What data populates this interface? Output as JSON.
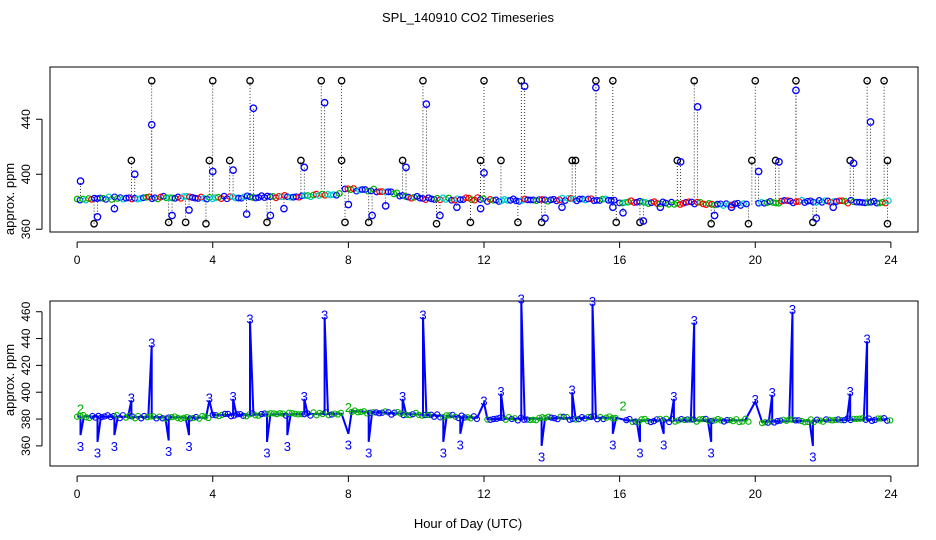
{
  "chart_data": [
    {
      "type": "scatter",
      "title": "SPL_140910  CO2 Timeseries",
      "xlabel": "",
      "ylabel": "approx. ppm",
      "xlim": [
        -0.8,
        24.8
      ],
      "ylim": [
        358,
        478
      ],
      "xticks": [
        0,
        4,
        8,
        12,
        16,
        20,
        24
      ],
      "yticks": [
        360,
        400,
        440
      ],
      "grid": false,
      "legend": "none",
      "baseline_segments": [
        {
          "x": [
            0.0,
            2.0,
            4.0,
            7.8
          ],
          "y": [
            382,
            383,
            383,
            385
          ]
        },
        {
          "x": [
            7.9,
            9.0,
            9.7,
            10.4,
            12.0
          ],
          "y": [
            389,
            388,
            384,
            382,
            382
          ]
        },
        {
          "x": [
            12.1,
            15.9
          ],
          "y": [
            381,
            382
          ]
        },
        {
          "x": [
            16.0,
            19.8
          ],
          "y": [
            380,
            378
          ]
        },
        {
          "x": [
            20.1,
            24.0
          ],
          "y": [
            380,
            380
          ]
        }
      ],
      "spikes": [
        {
          "x": 0.1,
          "y": 395
        },
        {
          "x": 0.5,
          "y": 364
        },
        {
          "x": 0.6,
          "y": 369
        },
        {
          "x": 1.1,
          "y": 375
        },
        {
          "x": 1.6,
          "y": 410
        },
        {
          "x": 1.7,
          "y": 400
        },
        {
          "x": 2.2,
          "y": 468
        },
        {
          "x": 2.2,
          "y": 436
        },
        {
          "x": 2.7,
          "y": 365
        },
        {
          "x": 2.8,
          "y": 370
        },
        {
          "x": 3.2,
          "y": 365
        },
        {
          "x": 3.3,
          "y": 374
        },
        {
          "x": 3.8,
          "y": 364
        },
        {
          "x": 3.9,
          "y": 410
        },
        {
          "x": 4.0,
          "y": 468
        },
        {
          "x": 4.0,
          "y": 402
        },
        {
          "x": 4.5,
          "y": 410
        },
        {
          "x": 4.6,
          "y": 403
        },
        {
          "x": 5.0,
          "y": 371
        },
        {
          "x": 5.1,
          "y": 468
        },
        {
          "x": 5.2,
          "y": 448
        },
        {
          "x": 5.6,
          "y": 365
        },
        {
          "x": 5.7,
          "y": 370
        },
        {
          "x": 6.1,
          "y": 375
        },
        {
          "x": 6.6,
          "y": 410
        },
        {
          "x": 6.7,
          "y": 405
        },
        {
          "x": 7.2,
          "y": 468
        },
        {
          "x": 7.3,
          "y": 452
        },
        {
          "x": 7.8,
          "y": 468
        },
        {
          "x": 7.8,
          "y": 410
        },
        {
          "x": 7.9,
          "y": 365
        },
        {
          "x": 8.0,
          "y": 378
        },
        {
          "x": 8.6,
          "y": 365
        },
        {
          "x": 8.7,
          "y": 370
        },
        {
          "x": 9.1,
          "y": 377
        },
        {
          "x": 9.6,
          "y": 410
        },
        {
          "x": 9.7,
          "y": 405
        },
        {
          "x": 10.2,
          "y": 468
        },
        {
          "x": 10.3,
          "y": 451
        },
        {
          "x": 10.6,
          "y": 364
        },
        {
          "x": 10.7,
          "y": 370
        },
        {
          "x": 11.2,
          "y": 376
        },
        {
          "x": 11.6,
          "y": 365
        },
        {
          "x": 11.9,
          "y": 410
        },
        {
          "x": 11.9,
          "y": 375
        },
        {
          "x": 12.0,
          "y": 468
        },
        {
          "x": 12.0,
          "y": 401
        },
        {
          "x": 12.5,
          "y": 410
        },
        {
          "x": 13.0,
          "y": 365
        },
        {
          "x": 13.1,
          "y": 468
        },
        {
          "x": 13.2,
          "y": 464
        },
        {
          "x": 13.7,
          "y": 365
        },
        {
          "x": 13.8,
          "y": 368
        },
        {
          "x": 14.3,
          "y": 376
        },
        {
          "x": 14.6,
          "y": 410
        },
        {
          "x": 14.7,
          "y": 410
        },
        {
          "x": 15.3,
          "y": 468
        },
        {
          "x": 15.3,
          "y": 463
        },
        {
          "x": 15.8,
          "y": 468
        },
        {
          "x": 15.8,
          "y": 376
        },
        {
          "x": 15.9,
          "y": 365
        },
        {
          "x": 16.1,
          "y": 372
        },
        {
          "x": 16.6,
          "y": 365
        },
        {
          "x": 16.7,
          "y": 366
        },
        {
          "x": 17.2,
          "y": 376
        },
        {
          "x": 17.7,
          "y": 410
        },
        {
          "x": 17.8,
          "y": 409
        },
        {
          "x": 18.2,
          "y": 468
        },
        {
          "x": 18.3,
          "y": 449
        },
        {
          "x": 18.7,
          "y": 364
        },
        {
          "x": 18.8,
          "y": 370
        },
        {
          "x": 19.3,
          "y": 376
        },
        {
          "x": 19.8,
          "y": 364
        },
        {
          "x": 19.9,
          "y": 410
        },
        {
          "x": 20.0,
          "y": 468
        },
        {
          "x": 20.1,
          "y": 402
        },
        {
          "x": 20.6,
          "y": 410
        },
        {
          "x": 20.7,
          "y": 409
        },
        {
          "x": 21.2,
          "y": 468
        },
        {
          "x": 21.2,
          "y": 461
        },
        {
          "x": 21.7,
          "y": 365
        },
        {
          "x": 21.8,
          "y": 368
        },
        {
          "x": 22.3,
          "y": 376
        },
        {
          "x": 22.8,
          "y": 410
        },
        {
          "x": 22.9,
          "y": 408
        },
        {
          "x": 23.3,
          "y": 468
        },
        {
          "x": 23.4,
          "y": 438
        },
        {
          "x": 23.8,
          "y": 468
        },
        {
          "x": 23.9,
          "y": 410
        },
        {
          "x": 23.9,
          "y": 364
        }
      ]
    },
    {
      "type": "line",
      "title": "",
      "xlabel": "Hour of Day (UTC)",
      "ylabel": "approx. ppm",
      "xlim": [
        -0.8,
        24.8
      ],
      "ylim": [
        345,
        468
      ],
      "xticks": [
        0,
        4,
        8,
        12,
        16,
        20,
        24
      ],
      "yticks": [
        360,
        380,
        400,
        420,
        440,
        460
      ],
      "series_name": "3",
      "labeled_points": [
        {
          "x": 0.1,
          "y": 360,
          "label": "3"
        },
        {
          "x": 0.6,
          "y": 355,
          "label": "3"
        },
        {
          "x": 1.1,
          "y": 360,
          "label": "3"
        },
        {
          "x": 1.6,
          "y": 396,
          "label": "3"
        },
        {
          "x": 2.2,
          "y": 437,
          "label": "3"
        },
        {
          "x": 2.7,
          "y": 356,
          "label": "3"
        },
        {
          "x": 3.3,
          "y": 360,
          "label": "3"
        },
        {
          "x": 3.9,
          "y": 396,
          "label": "3"
        },
        {
          "x": 4.6,
          "y": 397,
          "label": "3"
        },
        {
          "x": 5.1,
          "y": 455,
          "label": "3"
        },
        {
          "x": 5.6,
          "y": 355,
          "label": "3"
        },
        {
          "x": 6.2,
          "y": 360,
          "label": "3"
        },
        {
          "x": 6.7,
          "y": 397,
          "label": "3"
        },
        {
          "x": 7.3,
          "y": 458,
          "label": "3"
        },
        {
          "x": 8.0,
          "y": 361,
          "label": "3"
        },
        {
          "x": 8.6,
          "y": 355,
          "label": "3"
        },
        {
          "x": 9.6,
          "y": 397,
          "label": "3"
        },
        {
          "x": 10.2,
          "y": 458,
          "label": "3"
        },
        {
          "x": 10.8,
          "y": 355,
          "label": "3"
        },
        {
          "x": 11.3,
          "y": 361,
          "label": "3"
        },
        {
          "x": 12.0,
          "y": 394,
          "label": "3"
        },
        {
          "x": 12.5,
          "y": 401,
          "label": "3"
        },
        {
          "x": 13.1,
          "y": 470,
          "label": "3"
        },
        {
          "x": 13.7,
          "y": 352,
          "label": "3"
        },
        {
          "x": 14.6,
          "y": 402,
          "label": "3"
        },
        {
          "x": 15.2,
          "y": 468,
          "label": "3"
        },
        {
          "x": 15.8,
          "y": 361,
          "label": "3"
        },
        {
          "x": 16.6,
          "y": 355,
          "label": "3"
        },
        {
          "x": 17.3,
          "y": 361,
          "label": "3"
        },
        {
          "x": 17.6,
          "y": 397,
          "label": "3"
        },
        {
          "x": 18.2,
          "y": 454,
          "label": "3"
        },
        {
          "x": 18.7,
          "y": 355,
          "label": "3"
        },
        {
          "x": 20.0,
          "y": 395,
          "label": "3"
        },
        {
          "x": 20.5,
          "y": 400,
          "label": "3"
        },
        {
          "x": 21.1,
          "y": 462,
          "label": "3"
        },
        {
          "x": 21.7,
          "y": 352,
          "label": "3"
        },
        {
          "x": 22.8,
          "y": 401,
          "label": "3"
        },
        {
          "x": 23.3,
          "y": 440,
          "label": "3"
        }
      ],
      "secondary_labels": [
        {
          "x": 0.1,
          "y": 388,
          "label": "2"
        },
        {
          "x": 8.0,
          "y": 389,
          "label": "2"
        },
        {
          "x": 16.1,
          "y": 390,
          "label": "2"
        }
      ],
      "baseline_segments": [
        {
          "x": [
            0.0,
            3.9
          ],
          "y": [
            382,
            381
          ]
        },
        {
          "x": [
            4.0,
            7.8
          ],
          "y": [
            383,
            384
          ]
        },
        {
          "x": [
            8.1,
            11.8
          ],
          "y": [
            386,
            381
          ]
        },
        {
          "x": [
            12.1,
            15.9
          ],
          "y": [
            380,
            381
          ]
        },
        {
          "x": [
            16.2,
            19.8
          ],
          "y": [
            379,
            379
          ]
        },
        {
          "x": [
            20.2,
            24.0
          ],
          "y": [
            378,
            380
          ]
        }
      ]
    }
  ]
}
